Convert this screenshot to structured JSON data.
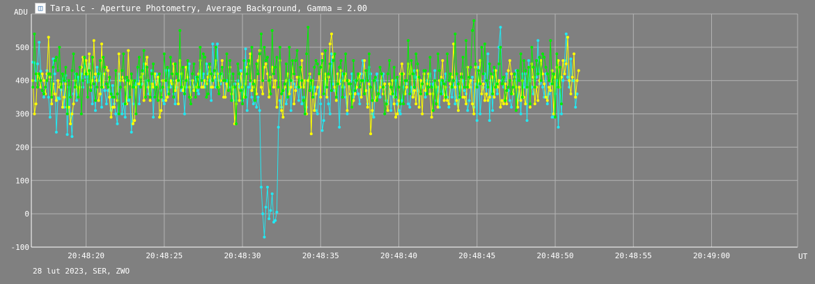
{
  "window": {
    "title": "Tara.lc - Aperture Photometry, Average Background, Gamma = 2.00",
    "icon": "photometry-app-icon"
  },
  "footer_text": "28 lut 2023, SER, ZWO",
  "colors": {
    "background": "#808080",
    "grid": "#b4b4b4",
    "axis": "#ffffff",
    "series_cyan": "#22e8f2",
    "series_yellow": "#ffff00",
    "series_green": "#00ee00"
  },
  "chart_data": {
    "type": "line",
    "xlabel": "UT",
    "ylabel": "ADU",
    "ylim": [
      -100,
      600
    ],
    "yticks": [
      -100,
      0,
      100,
      200,
      300,
      400,
      500
    ],
    "xlim_seconds_after_20_48_00": [
      16.5,
      65.5
    ],
    "xtick_labels": [
      "20:48:20",
      "20:48:25",
      "20:48:30",
      "20:48:35",
      "20:48:40",
      "20:48:45",
      "20:48:50",
      "20:48:55",
      "20:49:00"
    ],
    "xtick_seconds": [
      20,
      25,
      30,
      35,
      40,
      45,
      50,
      55,
      60
    ],
    "grid": true,
    "legend": "none",
    "x_start_seconds": 16.6,
    "x_step_seconds": 0.1,
    "series": [
      {
        "color": "#22e8f2",
        "values": [
          455,
          453,
          400,
          450,
          515,
          428,
          370,
          350,
          378,
          430,
          350,
          290,
          373,
          465,
          420,
          245,
          348,
          345,
          372,
          420,
          320,
          415,
          238,
          380,
          300,
          232,
          360,
          420,
          340,
          410,
          380,
          420,
          380,
          450,
          410,
          395,
          450,
          395,
          330,
          410,
          310,
          440,
          400,
          420,
          320,
          420,
          370,
          330,
          370,
          400,
          310,
          385,
          330,
          300,
          270,
          420,
          380,
          300,
          330,
          290,
          400,
          340,
          350,
          245,
          330,
          400,
          385,
          440,
          330,
          380,
          390,
          450,
          380,
          400,
          360,
          370,
          430,
          290,
          395,
          420,
          400,
          390,
          370,
          340,
          330,
          430,
          350,
          430,
          380,
          400,
          360,
          330,
          380,
          400,
          420,
          370,
          380,
          300,
          380,
          410,
          450,
          350,
          400,
          380,
          410,
          370,
          360,
          430,
          380,
          420,
          380,
          450,
          420,
          400,
          340,
          510,
          420,
          380,
          510,
          400,
          390,
          420,
          400,
          350,
          400,
          380,
          420,
          380,
          340,
          390,
          340,
          400,
          380,
          430,
          340,
          360,
          495,
          310,
          380,
          390,
          350,
          330,
          340,
          320,
          350,
          310,
          80,
          0,
          -70,
          20,
          80,
          -15,
          10,
          60,
          -25,
          -20,
          5,
          260,
          340,
          320,
          370,
          380,
          330,
          350,
          400,
          310,
          400,
          390,
          380,
          380,
          340,
          400,
          330,
          350,
          300,
          320,
          400,
          410,
          380,
          350,
          380,
          310,
          300,
          380,
          330,
          250,
          280,
          400,
          380,
          330,
          300,
          480,
          390,
          370,
          350,
          390,
          260,
          400,
          420,
          380,
          350,
          300,
          400,
          360,
          420,
          350,
          400,
          380,
          360,
          330,
          420,
          460,
          400,
          370,
          330,
          440,
          420,
          300,
          290,
          400,
          420,
          370,
          350,
          400,
          420,
          380,
          340,
          330,
          390,
          310,
          360,
          350,
          400,
          330,
          310,
          300,
          340,
          380,
          400,
          390,
          330,
          320,
          380,
          350,
          430,
          410,
          370,
          320,
          400,
          380,
          430,
          350,
          400,
          390,
          420,
          390,
          380,
          430,
          340,
          380,
          320,
          400,
          360,
          390,
          420,
          350,
          320,
          380,
          350,
          400,
          330,
          420,
          310,
          350,
          380,
          400,
          370,
          360,
          310,
          340,
          380,
          410,
          320,
          390,
          280,
          440,
          300,
          360,
          380,
          420,
          360,
          480,
          280,
          400,
          310,
          430,
          390,
          360,
          500,
          560,
          400,
          380,
          390,
          420,
          370,
          340,
          320,
          360,
          400,
          430,
          340,
          380,
          300,
          420,
          380,
          420,
          280,
          460,
          400,
          380,
          360,
          400,
          410,
          520,
          390,
          400,
          380,
          350,
          420,
          330,
          360,
          390,
          290,
          290,
          360,
          400,
          260,
          380,
          300,
          400,
          460,
          540,
          410,
          380,
          465,
          400,
          400,
          320,
          360
        ]
      },
      {
        "color": "#ffff00",
        "values": [
          400,
          300,
          330,
          420,
          410,
          380,
          420,
          400,
          360,
          420,
          530,
          410,
          330,
          390,
          360,
          340,
          400,
          380,
          390,
          320,
          350,
          390,
          320,
          320,
          270,
          300,
          330,
          400,
          380,
          350,
          380,
          440,
          470,
          420,
          460,
          420,
          480,
          380,
          400,
          520,
          420,
          400,
          340,
          360,
          510,
          380,
          420,
          440,
          430,
          350,
          290,
          320,
          320,
          430,
          340,
          480,
          400,
          410,
          400,
          380,
          330,
          490,
          390,
          400,
          270,
          280,
          380,
          390,
          390,
          410,
          420,
          340,
          450,
          470,
          380,
          340,
          390,
          380,
          420,
          380,
          410,
          290,
          310,
          400,
          400,
          340,
          350,
          380,
          400,
          390,
          450,
          370,
          400,
          330,
          460,
          420,
          370,
          380,
          440,
          410,
          380,
          350,
          400,
          370,
          380,
          380,
          420,
          460,
          380,
          380,
          400,
          390,
          410,
          440,
          380,
          380,
          410,
          460,
          420,
          380,
          400,
          460,
          350,
          350,
          390,
          370,
          440,
          360,
          380,
          270,
          330,
          390,
          340,
          420,
          380,
          350,
          390,
          440,
          450,
          480,
          370,
          380,
          400,
          360,
          460,
          490,
          380,
          360,
          440,
          450,
          420,
          350,
          410,
          440,
          380,
          400,
          320,
          380,
          460,
          310,
          290,
          380,
          400,
          420,
          360,
          380,
          460,
          330,
          370,
          410,
          410,
          380,
          460,
          380,
          400,
          300,
          400,
          420,
          240,
          400,
          310,
          360,
          380,
          420,
          350,
          480,
          360,
          420,
          350,
          410,
          510,
          540,
          470,
          380,
          340,
          420,
          390,
          430,
          380,
          400,
          420,
          310,
          400,
          360,
          320,
          340,
          360,
          380,
          410,
          420,
          350,
          400,
          460,
          370,
          320,
          390,
          240,
          310,
          400,
          340,
          350,
          360,
          380,
          420,
          360,
          390,
          330,
          310,
          390,
          360,
          400,
          330,
          290,
          300,
          340,
          420,
          450,
          420,
          360,
          380,
          450,
          420,
          460,
          350,
          370,
          330,
          430,
          320,
          400,
          300,
          420,
          370,
          390,
          420,
          360,
          290,
          360,
          400,
          380,
          320,
          400,
          410,
          460,
          340,
          380,
          340,
          330,
          390,
          410,
          510,
          380,
          340,
          310,
          380,
          420,
          350,
          350,
          330,
          440,
          380,
          400,
          330,
          300,
          440,
          380,
          400,
          460,
          360,
          390,
          340,
          360,
          340,
          350,
          420,
          410,
          350,
          430,
          380,
          400,
          320,
          340,
          330,
          390,
          330,
          430,
          460,
          420,
          360,
          410,
          380,
          320,
          380,
          340,
          400,
          350,
          330,
          380,
          440,
          320,
          450,
          410,
          330,
          380,
          340,
          400,
          460,
          420,
          390,
          350,
          340,
          380,
          370,
          430,
          300,
          410,
          440,
          460,
          380,
          410,
          460,
          420,
          450,
          530,
          400,
          360,
          410,
          480,
          350,
          400,
          430
        ]
      },
      {
        "color": "#00ee00",
        "values": [
          380,
          540,
          420,
          380,
          420,
          400,
          370,
          360,
          380,
          400,
          420,
          420,
          350,
          440,
          460,
          470,
          430,
          500,
          380,
          420,
          400,
          440,
          300,
          400,
          350,
          430,
          480,
          380,
          420,
          350,
          440,
          300,
          400,
          470,
          420,
          350,
          430,
          370,
          470,
          390,
          340,
          380,
          420,
          460,
          380,
          470,
          440,
          390,
          380,
          410,
          360,
          350,
          350,
          430,
          360,
          300,
          380,
          430,
          480,
          330,
          410,
          400,
          350,
          420,
          380,
          400,
          300,
          440,
          470,
          380,
          430,
          490,
          350,
          440,
          400,
          350,
          420,
          450,
          350,
          380,
          340,
          420,
          350,
          380,
          480,
          400,
          440,
          360,
          470,
          420,
          350,
          450,
          420,
          400,
          550,
          380,
          440,
          360,
          400,
          460,
          350,
          330,
          420,
          450,
          350,
          410,
          380,
          500,
          400,
          480,
          470,
          350,
          360,
          450,
          420,
          400,
          430,
          500,
          380,
          360,
          420,
          440,
          400,
          400,
          480,
          370,
          460,
          340,
          420,
          380,
          270,
          450,
          420,
          370,
          330,
          460,
          350,
          420,
          460,
          400,
          500,
          390,
          340,
          450,
          420,
          480,
          540,
          400,
          500,
          460,
          470,
          400,
          360,
          550,
          420,
          440,
          470,
          380,
          500,
          360,
          370,
          390,
          450,
          350,
          500,
          400,
          460,
          420,
          460,
          490,
          380,
          440,
          400,
          340,
          300,
          480,
          560,
          370,
          400,
          350,
          440,
          460,
          450,
          420,
          440,
          460,
          360,
          490,
          380,
          420,
          450,
          370,
          460,
          480,
          350,
          390,
          440,
          460,
          350,
          420,
          480,
          400,
          390,
          390,
          320,
          460,
          370,
          400,
          420,
          380,
          400,
          400,
          360,
          430,
          400,
          480,
          380,
          340,
          400,
          410,
          340,
          360,
          440,
          420,
          380,
          300,
          330,
          420,
          460,
          380,
          360,
          440,
          350,
          410,
          380,
          330,
          420,
          330,
          400,
          400,
          520,
          360,
          460,
          420,
          380,
          480,
          450,
          410,
          360,
          390,
          430,
          430,
          360,
          380,
          470,
          380,
          310,
          400,
          330,
          480,
          430,
          360,
          400,
          390,
          350,
          480,
          400,
          420,
          380,
          400,
          540,
          420,
          390,
          350,
          410,
          470,
          380,
          520,
          380,
          410,
          440,
          550,
          580,
          450,
          380,
          430,
          390,
          500,
          420,
          510,
          400,
          380,
          450,
          420,
          360,
          440,
          380,
          390,
          450,
          500,
          390,
          410,
          340,
          370,
          380,
          400,
          360,
          380,
          420,
          310,
          430,
          400,
          480,
          350,
          460,
          430,
          380,
          440,
          330,
          500,
          440,
          380,
          460,
          420,
          470,
          400,
          480,
          470,
          440,
          420,
          400,
          520,
          390,
          420,
          290,
          480,
          380,
          440,
          330
        ]
      }
    ]
  }
}
